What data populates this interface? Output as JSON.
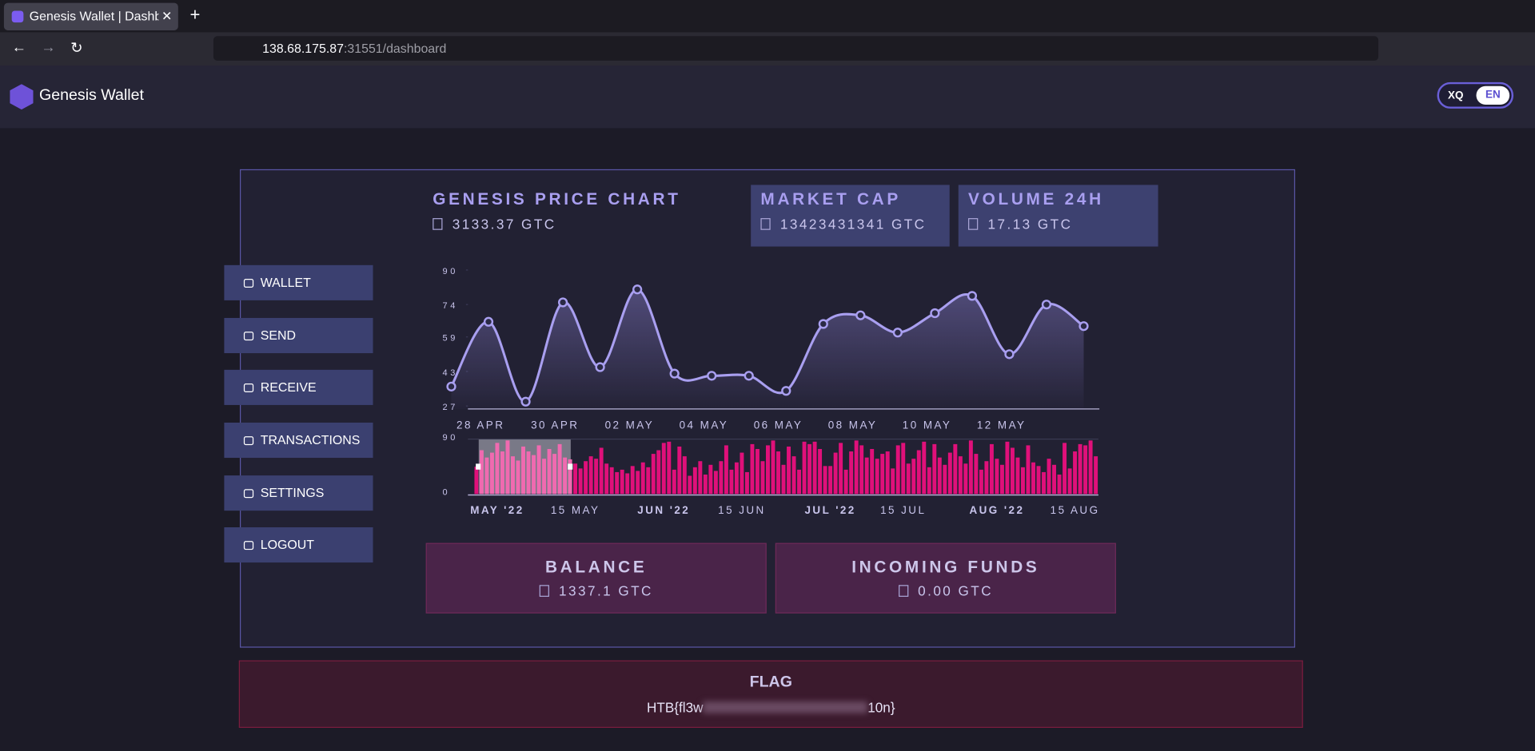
{
  "browser": {
    "tab_title": "Genesis Wallet | Dashboard",
    "url_host": "138.68.175.87",
    "url_rest": ":31551/dashboard"
  },
  "header": {
    "brand": "Genesis Wallet",
    "lang_options": [
      "XQ",
      "EN"
    ]
  },
  "stats": {
    "price_title": "GENESIS PRICE CHART",
    "price_value": "3133.37 GTC",
    "market_cap_title": "MARKET CAP",
    "market_cap_value": "13423431341 GTC",
    "volume_title": "VOLUME 24H",
    "volume_value": "17.13 GTC"
  },
  "menu": [
    "WALLET",
    "SEND",
    "RECEIVE",
    "TRANSACTIONS",
    "SETTINGS",
    "LOGOUT"
  ],
  "chart_data": [
    {
      "type": "line",
      "color": "#a99ff0",
      "ylim": [
        27,
        90
      ],
      "yticks": [
        27,
        43,
        59,
        74,
        90
      ],
      "categories": [
        null,
        "28 APR",
        null,
        "30 APR",
        null,
        "02 MAY",
        null,
        "04 MAY",
        null,
        "06 MAY",
        null,
        "08 MAY",
        null,
        "10 MAY",
        null,
        "12 MAY",
        null,
        null
      ],
      "values": [
        36,
        66,
        29,
        75,
        45,
        81,
        42,
        41,
        41,
        34,
        65,
        69,
        61,
        70,
        78,
        51,
        74,
        64
      ]
    },
    {
      "type": "bar",
      "color": "#e0107a",
      "ylim": [
        0,
        90
      ],
      "yticks": [
        0,
        90
      ],
      "categories": [
        null,
        null,
        null,
        null,
        "MAY '22",
        null,
        null,
        null,
        null,
        null,
        null,
        null,
        null,
        null,
        null,
        null,
        null,
        null,
        null,
        "15 MAY",
        null,
        null,
        null,
        null,
        null,
        null,
        null,
        null,
        null,
        null,
        null,
        null,
        null,
        null,
        null,
        null,
        "JUN '22",
        null,
        null,
        null,
        null,
        null,
        null,
        null,
        null,
        null,
        null,
        null,
        null,
        null,
        null,
        "15 JUN",
        null,
        null,
        null,
        null,
        null,
        null,
        null,
        null,
        null,
        null,
        null,
        null,
        null,
        null,
        null,
        null,
        "JUL '22",
        null,
        null,
        null,
        null,
        null,
        null,
        null,
        null,
        null,
        null,
        null,
        null,
        null,
        "15 JUL",
        null,
        null,
        null,
        null,
        null,
        null,
        null,
        null,
        null,
        null,
        null,
        null,
        null,
        null,
        null,
        null,
        null,
        "AUG '22",
        null,
        null,
        null,
        null,
        null,
        null,
        null,
        null,
        null,
        null,
        null,
        null,
        null,
        null,
        "15 AUG",
        null,
        null,
        null,
        null
      ],
      "values": [
        45,
        72,
        60,
        68,
        84,
        70,
        88,
        62,
        55,
        78,
        70,
        64,
        80,
        58,
        74,
        66,
        82,
        60,
        57,
        50,
        42,
        54,
        62,
        58,
        76,
        50,
        44,
        36,
        40,
        34,
        46,
        38,
        52,
        44,
        66,
        72,
        84,
        86,
        40,
        78,
        62,
        30,
        44,
        54,
        32,
        48,
        38,
        54,
        80,
        40,
        52,
        68,
        36,
        82,
        74,
        54,
        80,
        88,
        70,
        48,
        78,
        62,
        40,
        86,
        82,
        86,
        74,
        46,
        46,
        68,
        84,
        40,
        70,
        88,
        80,
        60,
        74,
        58,
        66,
        70,
        42,
        80,
        84,
        50,
        58,
        72,
        86,
        44,
        82,
        60,
        48,
        68,
        82,
        62,
        50,
        88,
        66,
        40,
        54,
        82,
        58,
        48,
        86,
        76,
        60,
        44,
        80,
        52,
        46,
        36,
        58,
        48,
        32,
        84,
        42,
        70,
        82,
        80,
        88,
        62
      ]
    }
  ],
  "balance": {
    "balance_title": "BALANCE",
    "balance_value": "1337.1 GTC",
    "incoming_title": "INCOMING FUNDS",
    "incoming_value": "0.00 GTC"
  },
  "flag": {
    "title": "FLAG",
    "prefix": "HTB{fl3w",
    "suffix": "10n}"
  }
}
